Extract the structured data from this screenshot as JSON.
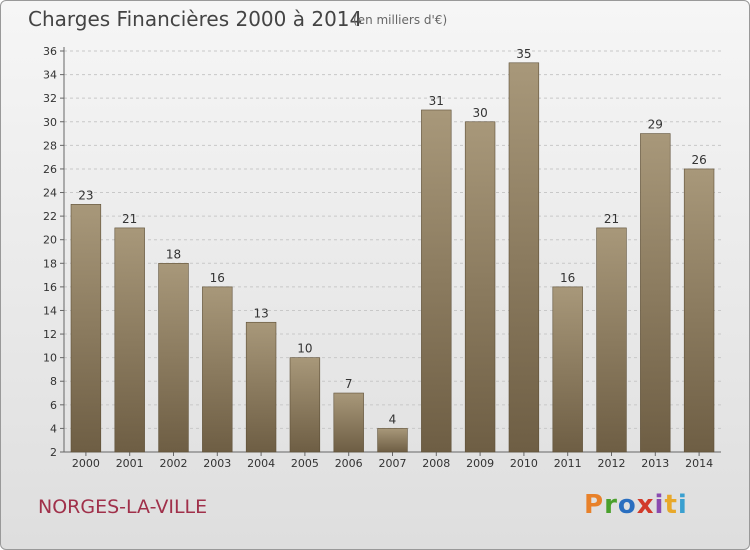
{
  "header": {
    "title": "Charges Financières 2000 à 2014",
    "subtitle": "(en milliers d'€)"
  },
  "footer": {
    "commune": "NORGES-LA-VILLE",
    "brand": "Proxiti",
    "brand_colors": [
      "#e8812a",
      "#4aa02c",
      "#2a6fc0",
      "#d23a2a",
      "#8a4bb0",
      "#e8a82a",
      "#3aa0d0"
    ]
  },
  "chart_data": {
    "type": "bar",
    "categories": [
      "2000",
      "2001",
      "2002",
      "2003",
      "2004",
      "2005",
      "2006",
      "2007",
      "2008",
      "2009",
      "2010",
      "2011",
      "2012",
      "2013",
      "2014"
    ],
    "values": [
      23,
      21,
      18,
      16,
      13,
      10,
      7,
      4,
      31,
      30,
      35,
      16,
      21,
      29,
      26
    ],
    "title": "Charges Financières 2000 à 2014",
    "subtitle": "(en milliers d'€)",
    "xlabel": "",
    "ylabel": "",
    "ylim": [
      2,
      36
    ],
    "yticks": [
      2,
      4,
      6,
      8,
      10,
      12,
      14,
      16,
      18,
      20,
      22,
      24,
      26,
      28,
      30,
      32,
      34,
      36
    ],
    "grid": true,
    "data_labels": true,
    "bar_color_top": "#a8987a",
    "bar_color_bottom": "#6e5e44"
  }
}
